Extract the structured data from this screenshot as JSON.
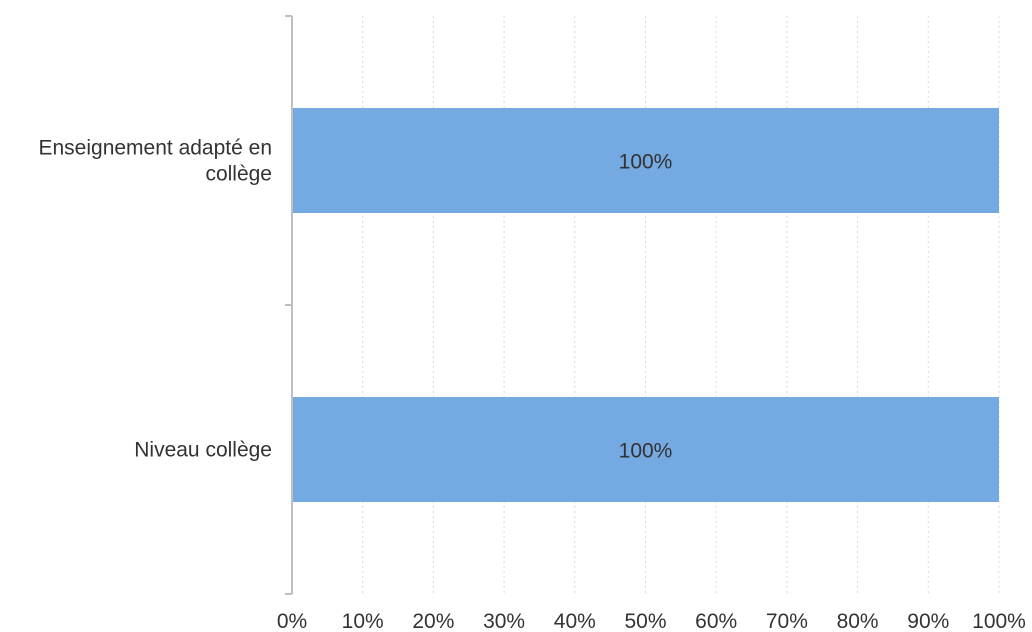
{
  "chart_data": {
    "type": "bar",
    "orientation": "horizontal",
    "categories": [
      [
        "Enseignement adapté en",
        "collège"
      ],
      [
        "Niveau collège"
      ]
    ],
    "values": [
      100,
      100
    ],
    "data_labels": [
      "100%",
      "100%"
    ],
    "x_ticks": [
      "0%",
      "10%",
      "20%",
      "30%",
      "40%",
      "50%",
      "60%",
      "70%",
      "80%",
      "90%",
      "100%"
    ],
    "xlim": [
      0,
      100
    ],
    "title": "",
    "xlabel": "",
    "ylabel": "",
    "grid": "vertical dotted",
    "legend": "none",
    "colors": {
      "bar": "#74a9e1",
      "grid": "#d9d9d9",
      "axis": "#bfbfbf",
      "text": "#333333"
    }
  }
}
